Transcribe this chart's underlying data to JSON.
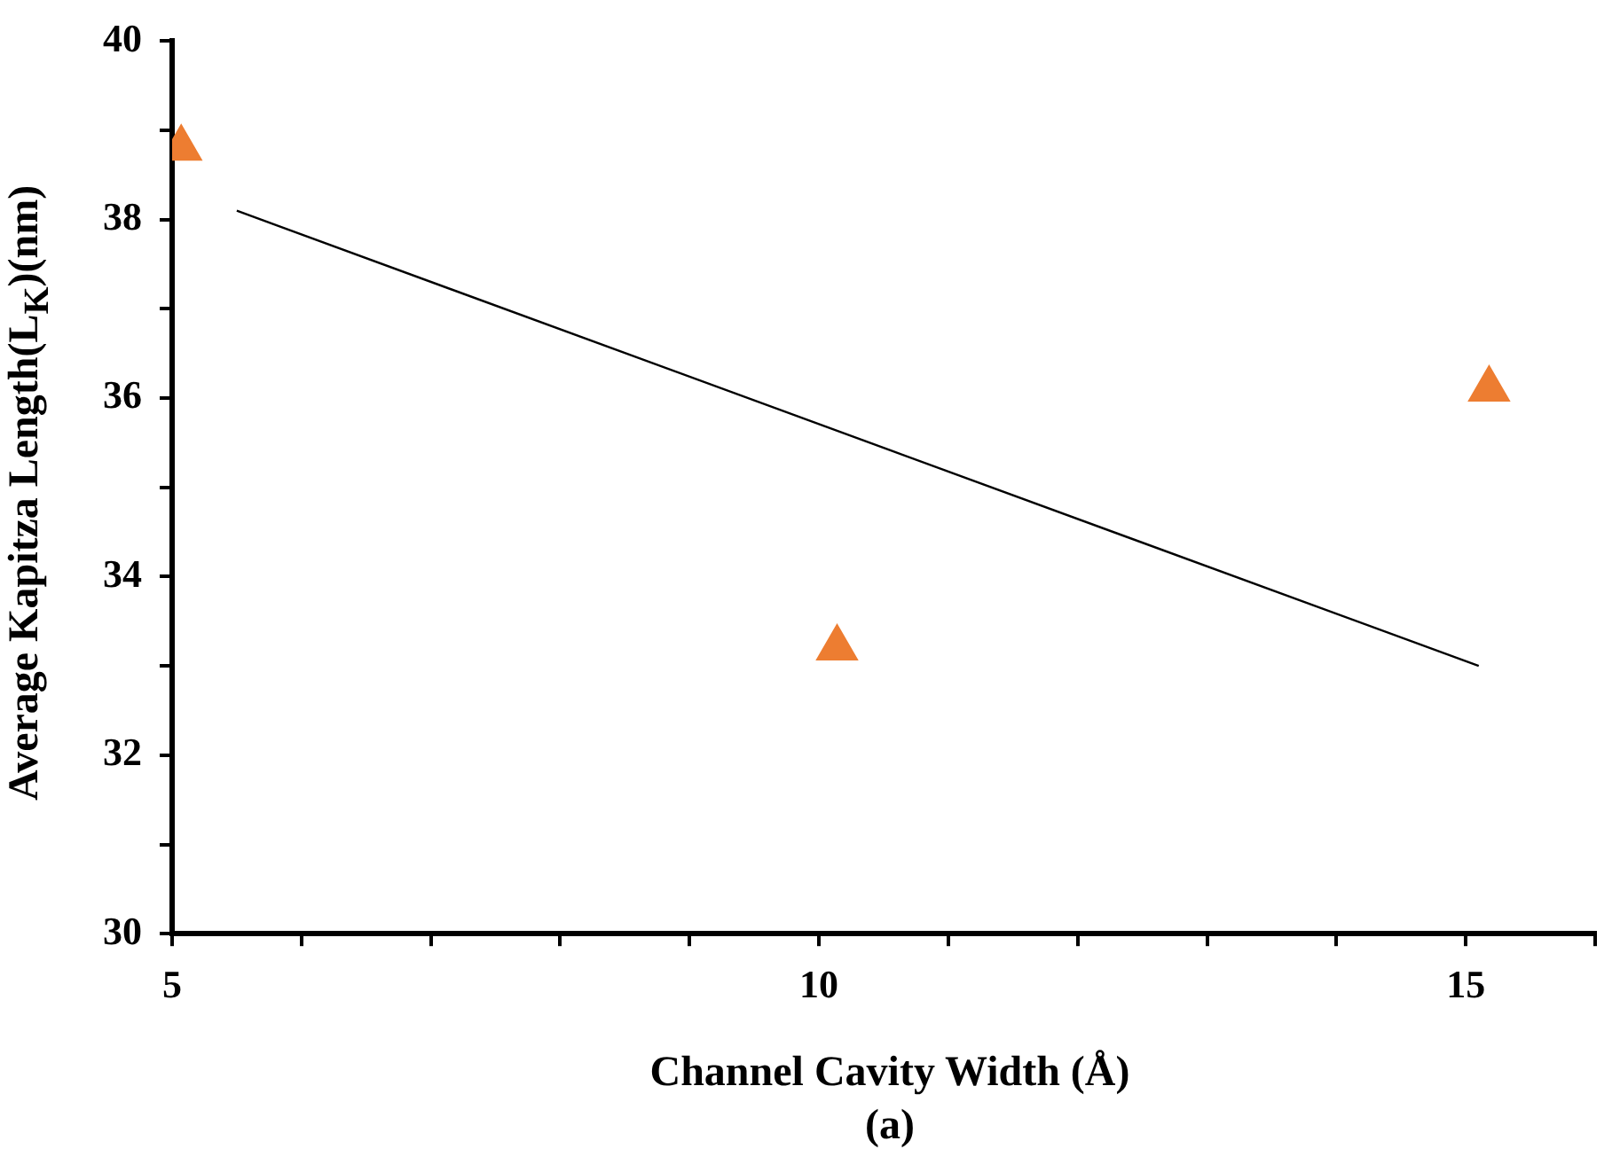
{
  "chart_data": {
    "type": "scatter",
    "xlabel": "Channel Cavity Width (Å)",
    "ylabel": "Average Kapitza Length(L$_{K}$)(nm)",
    "annotations": [
      "(a)"
    ],
    "xlim": [
      5,
      16
    ],
    "xticks": [
      5,
      {
        "value": 6,
        "label": null
      },
      {
        "value": 7,
        "label": null
      },
      {
        "value": 8,
        "label": null
      },
      {
        "value": 9,
        "label": null
      },
      10,
      {
        "value": 11,
        "label": null
      },
      {
        "value": 12,
        "label": null
      },
      {
        "value": 13,
        "label": null
      },
      {
        "value": 14,
        "label": null
      },
      15,
      {
        "value": 16,
        "label": null
      }
    ],
    "ylim": [
      30,
      40
    ],
    "yticks": [
      30,
      {
        "value": 31,
        "label": null
      },
      32,
      {
        "value": 33,
        "label": null
      },
      34,
      {
        "value": 35,
        "label": null
      },
      36,
      {
        "value": 37,
        "label": null
      },
      38,
      {
        "value": 39,
        "label": null
      },
      40
    ],
    "grid": false,
    "legend": false,
    "series": [
      {
        "type": "scatter",
        "marker": "triangle",
        "color": "#ed7d31",
        "x": [
          5.07,
          10.14,
          15.18
        ],
        "values": [
          38.8,
          33.2,
          36.1
        ]
      },
      {
        "type": "line",
        "marker": "none",
        "color": "#000000",
        "x": [
          5.5,
          15.1
        ],
        "values": [
          38.1,
          33.0
        ]
      }
    ]
  }
}
